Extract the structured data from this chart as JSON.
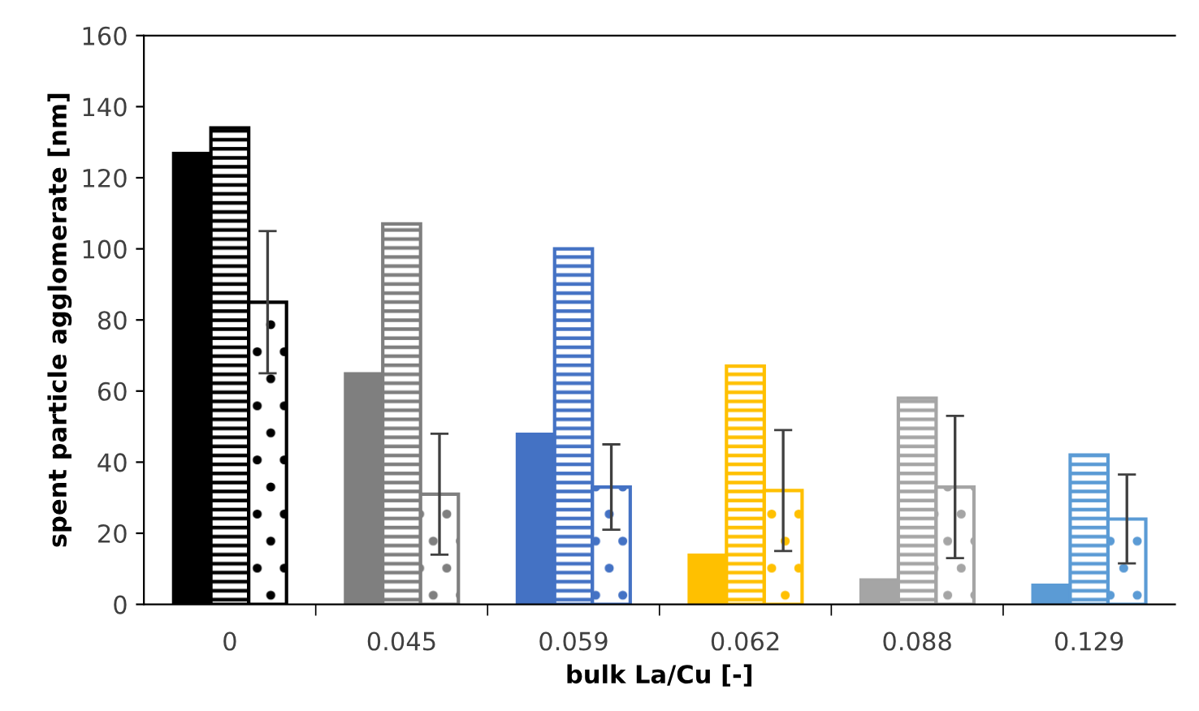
{
  "chart_data": {
    "type": "bar",
    "xlabel": "bulk La/Cu [-]",
    "ylabel": "spent particle agglomerate [nm]",
    "categories": [
      "0",
      "0.045",
      "0.059",
      "0.062",
      "0.088",
      "0.129"
    ],
    "series": [
      {
        "colors": [
          "#000000",
          "#7f7f7f",
          "#4472c4",
          "#ffc000",
          "#a5a5a5",
          "#5b9bd5"
        ],
        "values": [
          127,
          65,
          48,
          14,
          7,
          5.5
        ]
      },
      {
        "colors": [
          "#000000",
          "#7f7f7f",
          "#4472c4",
          "#ffc000",
          "#a5a5a5",
          "#5b9bd5"
        ],
        "values": [
          134,
          107,
          100,
          67,
          58,
          42
        ]
      },
      {
        "colors": [
          "#000000",
          "#7f7f7f",
          "#4472c4",
          "#ffc000",
          "#a5a5a5",
          "#5b9bd5"
        ],
        "values": [
          85,
          31,
          33,
          32,
          33,
          24
        ],
        "errors": [
          20,
          17,
          12,
          17,
          20,
          12.5
        ]
      }
    ],
    "ylim": [
      0,
      160
    ],
    "yticks": [
      0,
      20,
      40,
      60,
      80,
      100,
      120,
      140,
      160
    ],
    "grid": false,
    "legend": false
  }
}
